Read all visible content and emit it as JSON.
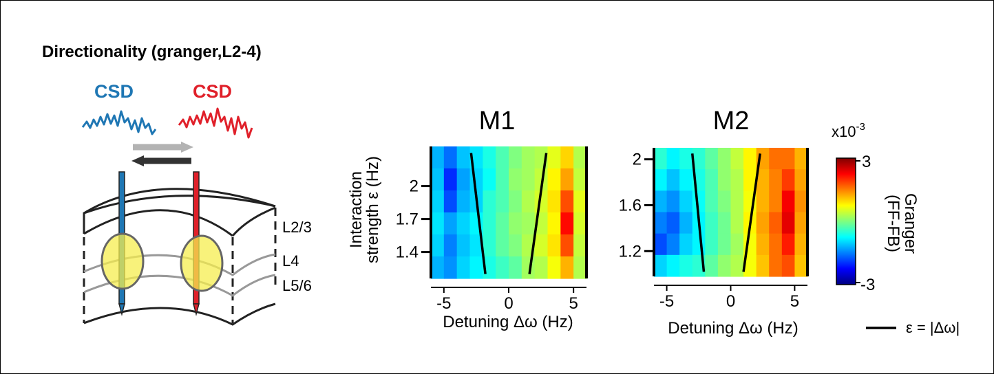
{
  "title": "Directionality (granger,L2-4)",
  "schematic": {
    "csd_left_label": "CSD",
    "csd_right_label": "CSD",
    "colors": {
      "left": "#1f77b4",
      "right": "#e0202a",
      "ff_arrow": "#b3b3b3",
      "fb_arrow": "#333333",
      "overlap": "#f5ee4f"
    },
    "layers": [
      "L2/3",
      "L4",
      "L5/6"
    ]
  },
  "colorbar": {
    "multiplier": "x10",
    "exponent": "-3",
    "max_label": "3",
    "min_label": "-3",
    "label_line1": "Granger",
    "label_line2": "(FF-FB)",
    "range": [
      -3,
      3
    ],
    "colormap": "jet"
  },
  "legend": {
    "text": "ε = |Δω|"
  },
  "chart_data": [
    {
      "type": "heatmap",
      "title": "M1",
      "xlabel": "Detuning Δω (Hz)",
      "ylabel_line1": "Interaction",
      "ylabel_line2": "strength ε (Hz)",
      "xlim": [
        -6,
        6
      ],
      "ylim": [
        1.16,
        2.36
      ],
      "xticks": [
        -5,
        0,
        5
      ],
      "yticks": [
        1.4,
        1.7,
        2
      ],
      "ytick_labels": [
        "1.4",
        "1.7",
        "2"
      ],
      "x": [
        -5.5,
        -4.5,
        -3.5,
        -2.5,
        -1.5,
        -0.5,
        0.5,
        1.5,
        2.5,
        3.5,
        4.5,
        5.5
      ],
      "y": [
        2.25,
        2.05,
        1.85,
        1.65,
        1.45,
        1.25
      ],
      "z": [
        [
          -1.2,
          -1.6,
          -1.1,
          -0.9,
          -0.6,
          -0.3,
          0.0,
          0.2,
          0.3,
          0.6,
          1.0,
          0.3
        ],
        [
          -1.1,
          -2.0,
          -1.3,
          -1.0,
          -0.7,
          -0.3,
          0.1,
          0.2,
          0.4,
          0.8,
          1.3,
          0.4
        ],
        [
          -1.0,
          -1.8,
          -1.2,
          -1.0,
          -0.5,
          -0.3,
          0.0,
          0.3,
          0.5,
          0.9,
          1.8,
          0.6
        ],
        [
          -0.9,
          -1.3,
          -1.0,
          -0.8,
          -0.5,
          -0.2,
          0.1,
          0.2,
          0.4,
          0.8,
          2.2,
          0.5
        ],
        [
          -1.0,
          -1.5,
          -1.1,
          -0.9,
          -0.5,
          -0.2,
          0.0,
          0.3,
          0.5,
          0.9,
          1.8,
          0.4
        ],
        [
          -1.2,
          -1.4,
          -1.0,
          -0.8,
          -0.6,
          -0.4,
          -0.2,
          0.2,
          0.3,
          0.7,
          1.2,
          0.3
        ]
      ],
      "lines": [
        {
          "x": [
            -2.9,
            -1.8
          ],
          "y": [
            2.3,
            1.2
          ]
        },
        {
          "x": [
            2.9,
            1.6
          ],
          "y": [
            2.3,
            1.2
          ]
        }
      ]
    },
    {
      "type": "heatmap",
      "title": "M2",
      "xlabel": "Detuning Δω (Hz)",
      "xlim": [
        -6,
        6
      ],
      "ylim": [
        0.98,
        2.1
      ],
      "xticks": [
        -5,
        0,
        5
      ],
      "yticks": [
        1.2,
        1.6,
        2
      ],
      "ytick_labels": [
        "1.2",
        "1.6",
        "2"
      ],
      "x": [
        -5.5,
        -4.5,
        -3.5,
        -2.5,
        -1.5,
        -0.5,
        0.5,
        1.5,
        2.5,
        3.5,
        4.5,
        5.5
      ],
      "y": [
        2.0,
        1.8,
        1.6,
        1.4,
        1.2,
        1.05
      ],
      "z": [
        [
          -0.5,
          -0.8,
          -0.6,
          -0.5,
          -0.2,
          0.1,
          0.4,
          0.8,
          1.3,
          1.6,
          1.6,
          1.2
        ],
        [
          -0.8,
          -1.1,
          -0.8,
          -0.6,
          -0.3,
          0.1,
          0.3,
          0.8,
          1.2,
          1.5,
          1.9,
          1.3
        ],
        [
          -1.2,
          -1.4,
          -1.0,
          -0.7,
          -0.3,
          0.0,
          0.3,
          0.7,
          1.2,
          1.5,
          2.3,
          1.4
        ],
        [
          -1.5,
          -1.7,
          -1.2,
          -0.8,
          -0.4,
          -0.1,
          0.3,
          0.8,
          1.3,
          1.7,
          2.4,
          1.3
        ],
        [
          -1.8,
          -1.5,
          -1.0,
          -0.8,
          -0.4,
          -0.1,
          0.2,
          0.7,
          1.2,
          1.6,
          2.1,
          1.2
        ],
        [
          -1.0,
          -0.8,
          -0.6,
          -0.5,
          -0.2,
          0.1,
          0.3,
          0.7,
          1.1,
          1.6,
          1.8,
          1.1
        ]
      ],
      "lines": [
        {
          "x": [
            -3.0,
            -2.1
          ],
          "y": [
            2.05,
            1.02
          ]
        },
        {
          "x": [
            2.3,
            1.0
          ],
          "y": [
            2.05,
            1.02
          ]
        }
      ]
    }
  ]
}
